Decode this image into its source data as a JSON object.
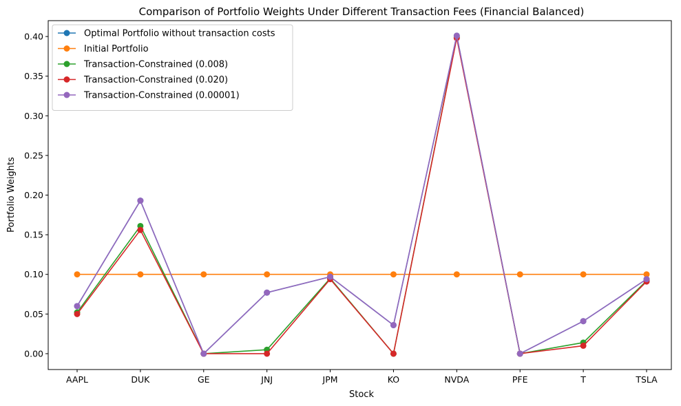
{
  "chart_data": {
    "type": "line",
    "title": "Comparison of Portfolio Weights Under Different Transaction Fees (Financial Balanced)",
    "xlabel": "Stock",
    "ylabel": "Portfolio Weights",
    "categories": [
      "AAPL",
      "DUK",
      "GE",
      "JNJ",
      "JPM",
      "KO",
      "NVDA",
      "PFE",
      "T",
      "TSLA"
    ],
    "ylim": [
      -0.02,
      0.42
    ],
    "yticks": [
      0.0,
      0.05,
      0.1,
      0.15,
      0.2,
      0.25,
      0.3,
      0.35,
      0.4
    ],
    "ytick_labels": [
      "0.00",
      "0.05",
      "0.10",
      "0.15",
      "0.20",
      "0.25",
      "0.30",
      "0.35",
      "0.40"
    ],
    "grid": false,
    "legend_position": "top-left",
    "series": [
      {
        "name": "Optimal Portfolio without transaction costs",
        "color": "#1f77b4",
        "values": [
          0.06,
          0.193,
          0.0,
          0.077,
          0.097,
          0.036,
          0.401,
          0.0,
          0.041,
          0.094
        ]
      },
      {
        "name": "Initial Portfolio",
        "color": "#ff7f0e",
        "values": [
          0.1,
          0.1,
          0.1,
          0.1,
          0.1,
          0.1,
          0.1,
          0.1,
          0.1,
          0.1
        ]
      },
      {
        "name": "Transaction-Constrained (0.008)",
        "color": "#2ca02c",
        "values": [
          0.052,
          0.161,
          0.0,
          0.005,
          0.095,
          0.0,
          0.399,
          0.0,
          0.014,
          0.092
        ]
      },
      {
        "name": "Transaction-Constrained (0.020)",
        "color": "#d62728",
        "values": [
          0.05,
          0.156,
          0.0,
          0.0,
          0.094,
          0.0,
          0.398,
          0.0,
          0.01,
          0.091
        ]
      },
      {
        "name": "Transaction-Constrained (0.00001)",
        "color": "#9467bd",
        "values": [
          0.06,
          0.193,
          0.0,
          0.077,
          0.097,
          0.036,
          0.401,
          0.0,
          0.041,
          0.094
        ]
      }
    ]
  }
}
